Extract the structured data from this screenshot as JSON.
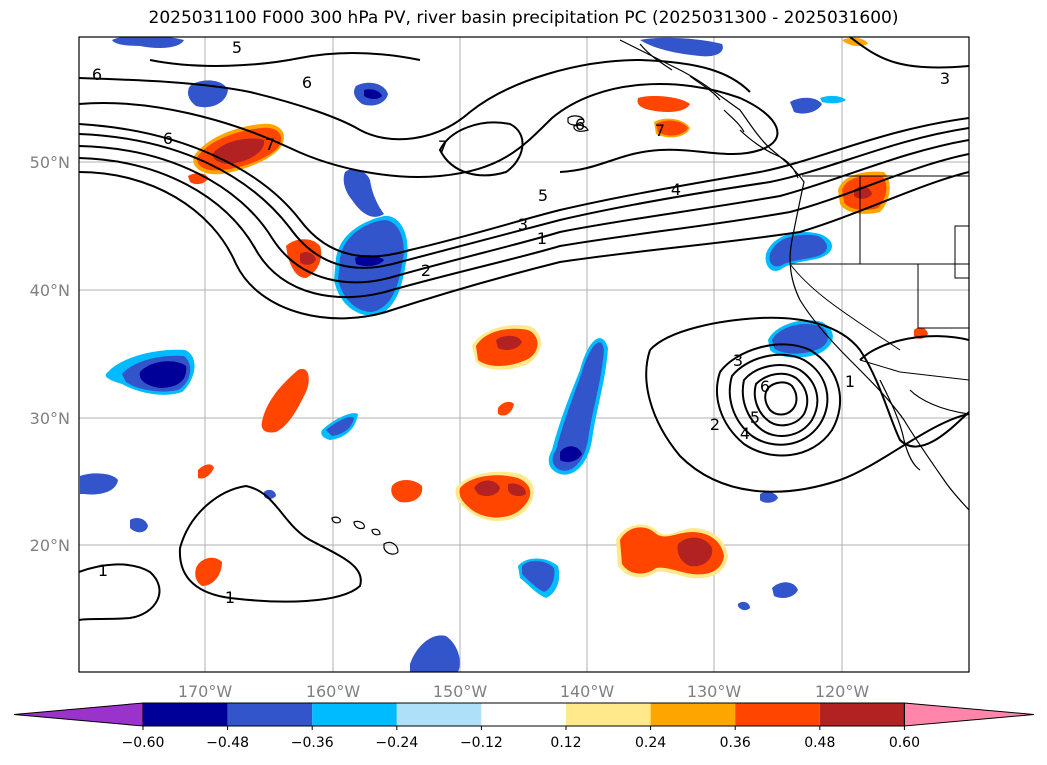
{
  "title": "2025031100 F000 300 hPa PV, river basin precipitation PC (2025031300 - 2025031600)",
  "lon_labels": [
    "170°W",
    "160°W",
    "150°W",
    "140°W",
    "130°W",
    "120°W"
  ],
  "lat_labels": [
    "50°N",
    "40°N",
    "30°N",
    "20°N"
  ],
  "colorbar": {
    "colors": [
      "#9933cc",
      "#000099",
      "#3355cc",
      "#00bbff",
      "#aee0fa",
      "#ffffff",
      "#ffe98a",
      "#ffa500",
      "#ff4500",
      "#b22222",
      "#ff85aa"
    ],
    "ticks": [
      "−0.60",
      "−0.48",
      "−0.36",
      "−0.24",
      "−0.12",
      "0.12",
      "0.24",
      "0.36",
      "0.48",
      "0.60"
    ]
  },
  "contour_labels": [
    "6",
    "5",
    "6",
    "6",
    "7",
    "7",
    "7",
    "6",
    "4",
    "5",
    "3",
    "1",
    "2",
    "3",
    "3",
    "6",
    "5",
    "4",
    "2",
    "1",
    "1",
    "1"
  ]
}
